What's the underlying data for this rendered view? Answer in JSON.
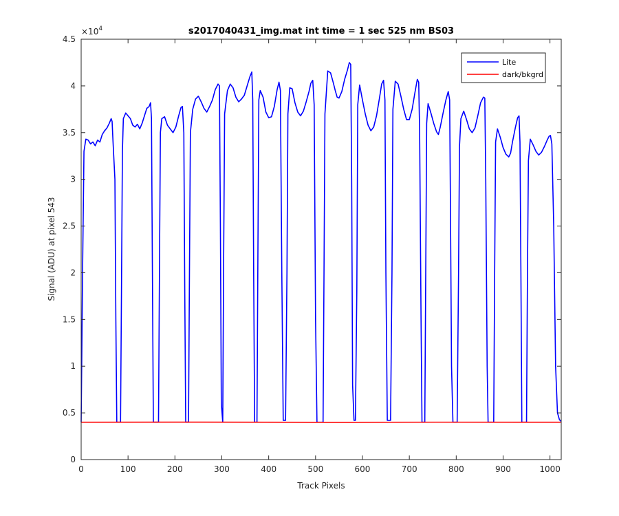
{
  "chart_data": {
    "type": "line",
    "title": "s2017040431_img.mat int time = 1 sec  525 nm BS03",
    "xlabel": "Track Pixels",
    "ylabel": "Signal (ADU) at pixel 543",
    "y_exponent_label": "×10",
    "y_exponent_power": "4",
    "xlim": [
      0,
      1024
    ],
    "ylim": [
      0,
      45000
    ],
    "xticks": [
      0,
      100,
      200,
      300,
      400,
      500,
      600,
      700,
      800,
      900,
      1000
    ],
    "xtick_labels": [
      "0",
      "100",
      "200",
      "300",
      "400",
      "500",
      "600",
      "700",
      "800",
      "900",
      "1000"
    ],
    "yticks": [
      0,
      5000,
      10000,
      15000,
      20000,
      25000,
      30000,
      35000,
      40000,
      45000
    ],
    "ytick_labels": [
      "0",
      "0.5",
      "1",
      "1.5",
      "2",
      "2.5",
      "3",
      "3.5",
      "4",
      "4.5"
    ],
    "grid": false,
    "legend_position": "top-right",
    "series": [
      {
        "name": "Lite",
        "color": "#0000ff",
        "points": [
          [
            0,
            4000
          ],
          [
            3,
            20000
          ],
          [
            6,
            33000
          ],
          [
            10,
            34300
          ],
          [
            15,
            34200
          ],
          [
            20,
            33800
          ],
          [
            25,
            34000
          ],
          [
            30,
            33600
          ],
          [
            35,
            34200
          ],
          [
            40,
            34000
          ],
          [
            45,
            34800
          ],
          [
            50,
            35200
          ],
          [
            55,
            35500
          ],
          [
            60,
            36000
          ],
          [
            64,
            36500
          ],
          [
            66,
            36200
          ],
          [
            68,
            34000
          ],
          [
            70,
            32000
          ],
          [
            72,
            30000
          ],
          [
            74,
            15000
          ],
          [
            76,
            4000
          ],
          [
            84,
            4000
          ],
          [
            86,
            18000
          ],
          [
            88,
            33000
          ],
          [
            90,
            36500
          ],
          [
            95,
            37100
          ],
          [
            100,
            36800
          ],
          [
            105,
            36500
          ],
          [
            110,
            35800
          ],
          [
            115,
            35600
          ],
          [
            120,
            35900
          ],
          [
            125,
            35400
          ],
          [
            130,
            36000
          ],
          [
            135,
            36800
          ],
          [
            140,
            37600
          ],
          [
            145,
            37800
          ],
          [
            148,
            38200
          ],
          [
            150,
            36500
          ],
          [
            152,
            20000
          ],
          [
            154,
            4000
          ],
          [
            165,
            4000
          ],
          [
            167,
            20000
          ],
          [
            169,
            35000
          ],
          [
            172,
            36500
          ],
          [
            178,
            36700
          ],
          [
            184,
            35800
          ],
          [
            190,
            35400
          ],
          [
            196,
            35000
          ],
          [
            202,
            35600
          ],
          [
            208,
            36800
          ],
          [
            213,
            37700
          ],
          [
            216,
            37800
          ],
          [
            219,
            35000
          ],
          [
            221,
            18000
          ],
          [
            223,
            4000
          ],
          [
            229,
            4000
          ],
          [
            231,
            20000
          ],
          [
            233,
            35000
          ],
          [
            238,
            37500
          ],
          [
            244,
            38600
          ],
          [
            250,
            38900
          ],
          [
            256,
            38300
          ],
          [
            262,
            37600
          ],
          [
            268,
            37200
          ],
          [
            274,
            37800
          ],
          [
            280,
            38500
          ],
          [
            286,
            39600
          ],
          [
            292,
            40200
          ],
          [
            295,
            40000
          ],
          [
            297,
            25000
          ],
          [
            299,
            6000
          ],
          [
            302,
            4000
          ],
          [
            304,
            22000
          ],
          [
            306,
            37000
          ],
          [
            312,
            39500
          ],
          [
            318,
            40200
          ],
          [
            324,
            39800
          ],
          [
            330,
            38800
          ],
          [
            336,
            38300
          ],
          [
            342,
            38600
          ],
          [
            348,
            39000
          ],
          [
            354,
            40000
          ],
          [
            360,
            41000
          ],
          [
            364,
            41500
          ],
          [
            366,
            38500
          ],
          [
            368,
            20000
          ],
          [
            370,
            4000
          ],
          [
            375,
            4000
          ],
          [
            377,
            22000
          ],
          [
            379,
            38500
          ],
          [
            382,
            39500
          ],
          [
            388,
            38800
          ],
          [
            394,
            37200
          ],
          [
            400,
            36600
          ],
          [
            406,
            36700
          ],
          [
            412,
            37800
          ],
          [
            418,
            39600
          ],
          [
            422,
            40400
          ],
          [
            425,
            39500
          ],
          [
            428,
            20000
          ],
          [
            431,
            4200
          ],
          [
            436,
            4200
          ],
          [
            439,
            20000
          ],
          [
            441,
            37000
          ],
          [
            445,
            39800
          ],
          [
            450,
            39700
          ],
          [
            456,
            38200
          ],
          [
            462,
            37200
          ],
          [
            468,
            36800
          ],
          [
            474,
            37300
          ],
          [
            480,
            38300
          ],
          [
            486,
            39400
          ],
          [
            490,
            40300
          ],
          [
            494,
            40600
          ],
          [
            497,
            38000
          ],
          [
            500,
            15000
          ],
          [
            503,
            4000
          ],
          [
            516,
            4000
          ],
          [
            518,
            20000
          ],
          [
            520,
            37000
          ],
          [
            526,
            41600
          ],
          [
            532,
            41400
          ],
          [
            538,
            40300
          ],
          [
            542,
            39500
          ],
          [
            546,
            38800
          ],
          [
            550,
            38700
          ],
          [
            556,
            39400
          ],
          [
            562,
            40700
          ],
          [
            568,
            41700
          ],
          [
            572,
            42500
          ],
          [
            575,
            42300
          ],
          [
            577,
            30000
          ],
          [
            579,
            8000
          ],
          [
            582,
            4200
          ],
          [
            585,
            4200
          ],
          [
            588,
            18000
          ],
          [
            590,
            38000
          ],
          [
            594,
            40100
          ],
          [
            600,
            38500
          ],
          [
            606,
            37000
          ],
          [
            612,
            35800
          ],
          [
            618,
            35200
          ],
          [
            624,
            35600
          ],
          [
            630,
            36800
          ],
          [
            636,
            38600
          ],
          [
            641,
            40200
          ],
          [
            645,
            40600
          ],
          [
            648,
            38500
          ],
          [
            650,
            20000
          ],
          [
            653,
            4200
          ],
          [
            660,
            4200
          ],
          [
            663,
            20000
          ],
          [
            665,
            37500
          ],
          [
            670,
            40500
          ],
          [
            676,
            40200
          ],
          [
            682,
            38900
          ],
          [
            688,
            37500
          ],
          [
            694,
            36400
          ],
          [
            700,
            36400
          ],
          [
            706,
            37500
          ],
          [
            712,
            39300
          ],
          [
            717,
            40700
          ],
          [
            720,
            40400
          ],
          [
            722,
            35000
          ],
          [
            725,
            15000
          ],
          [
            727,
            4000
          ],
          [
            733,
            4000
          ],
          [
            735,
            20000
          ],
          [
            737,
            36000
          ],
          [
            740,
            38100
          ],
          [
            746,
            37100
          ],
          [
            752,
            36000
          ],
          [
            758,
            35100
          ],
          [
            762,
            34800
          ],
          [
            766,
            35600
          ],
          [
            772,
            37100
          ],
          [
            778,
            38500
          ],
          [
            783,
            39400
          ],
          [
            786,
            38500
          ],
          [
            788,
            25000
          ],
          [
            790,
            10000
          ],
          [
            793,
            4000
          ],
          [
            802,
            4000
          ],
          [
            805,
            20000
          ],
          [
            807,
            33500
          ],
          [
            810,
            36500
          ],
          [
            816,
            37300
          ],
          [
            822,
            36400
          ],
          [
            828,
            35400
          ],
          [
            834,
            35000
          ],
          [
            840,
            35500
          ],
          [
            846,
            36800
          ],
          [
            852,
            38200
          ],
          [
            858,
            38800
          ],
          [
            861,
            38700
          ],
          [
            863,
            30000
          ],
          [
            866,
            10000
          ],
          [
            868,
            4000
          ],
          [
            880,
            4000
          ],
          [
            882,
            20000
          ],
          [
            884,
            34000
          ],
          [
            888,
            35400
          ],
          [
            894,
            34500
          ],
          [
            900,
            33400
          ],
          [
            906,
            32700
          ],
          [
            912,
            32400
          ],
          [
            916,
            32800
          ],
          [
            920,
            34000
          ],
          [
            926,
            35500
          ],
          [
            931,
            36600
          ],
          [
            934,
            36800
          ],
          [
            936,
            34000
          ],
          [
            938,
            20000
          ],
          [
            940,
            4000
          ],
          [
            950,
            4000
          ],
          [
            952,
            20000
          ],
          [
            954,
            32000
          ],
          [
            958,
            34300
          ],
          [
            964,
            33700
          ],
          [
            970,
            33000
          ],
          [
            976,
            32600
          ],
          [
            982,
            32900
          ],
          [
            988,
            33500
          ],
          [
            994,
            34200
          ],
          [
            998,
            34600
          ],
          [
            1001,
            34700
          ],
          [
            1004,
            33800
          ],
          [
            1008,
            25000
          ],
          [
            1012,
            10000
          ],
          [
            1016,
            5000
          ],
          [
            1020,
            4300
          ],
          [
            1023,
            4100
          ]
        ]
      },
      {
        "name": "dark/bkgrd",
        "color": "#ff0000",
        "points": [
          [
            0,
            4000
          ],
          [
            256,
            4010
          ],
          [
            512,
            3990
          ],
          [
            768,
            4005
          ],
          [
            1023,
            4000
          ]
        ]
      }
    ]
  }
}
